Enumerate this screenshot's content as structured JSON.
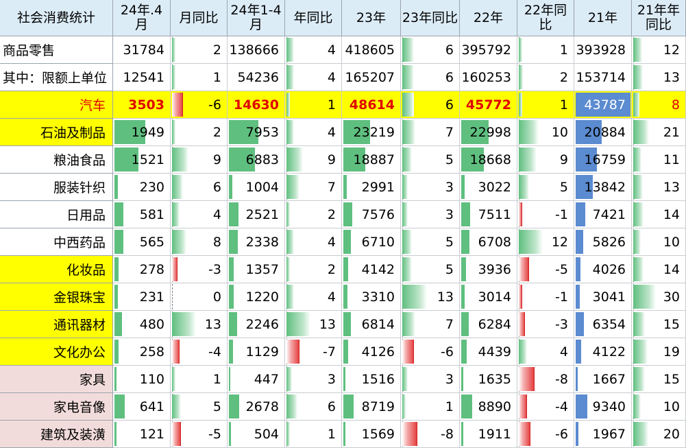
{
  "header": [
    "社会消费统计",
    "24年.4\n月",
    "月同比",
    "24年1-4\n月",
    "年同比",
    "23年",
    "23年同比",
    "22年",
    "22年同\n比",
    "21年",
    "21年年\n同比"
  ],
  "rows": [
    {
      "name": "商品零售",
      "values": [
        "31784",
        "2",
        "138666",
        "4",
        "418605",
        "6",
        "395792",
        "1",
        "393928",
        "12"
      ],
      "bg": "#ffffff",
      "align": "l"
    },
    {
      "name": "其中：限额上单位",
      "values": [
        "12541",
        "1",
        "54236",
        "4",
        "165207",
        "6",
        "160253",
        "2",
        "153714",
        "13"
      ],
      "bg": "#ffffff",
      "align": "l"
    },
    {
      "name": "汽车",
      "values": [
        "3503",
        "-6",
        "14630",
        "1",
        "48614",
        "6",
        "45772",
        "1",
        "43787",
        "8"
      ],
      "bg": "#ffff00",
      "align": "r",
      "highlight": true
    },
    {
      "name": "石油及制品",
      "values": [
        "1949",
        "2",
        "7953",
        "4",
        "23219",
        "7",
        "22998",
        "10",
        "20884",
        "21"
      ],
      "bg": "#ffff00",
      "align": "r"
    },
    {
      "name": "粮油食品",
      "values": [
        "1521",
        "9",
        "6883",
        "9",
        "18887",
        "5",
        "18668",
        "9",
        "16759",
        "11"
      ],
      "bg": "#ffffff",
      "align": "r"
    },
    {
      "name": "服装针织",
      "values": [
        "230",
        "6",
        "1004",
        "7",
        "2991",
        "3",
        "3022",
        "5",
        "13842",
        "13"
      ],
      "bg": "#ffffff",
      "align": "r"
    },
    {
      "name": "日用品",
      "values": [
        "581",
        "4",
        "2521",
        "2",
        "7576",
        "3",
        "7511",
        "-1",
        "7421",
        "14"
      ],
      "bg": "#ffffff",
      "align": "r"
    },
    {
      "name": "中西药品",
      "values": [
        "565",
        "8",
        "2338",
        "4",
        "6710",
        "5",
        "6708",
        "12",
        "5826",
        "10"
      ],
      "bg": "#ffffff",
      "align": "r"
    },
    {
      "name": "化妆品",
      "values": [
        "278",
        "-3",
        "1357",
        "2",
        "4142",
        "5",
        "3936",
        "-5",
        "4026",
        "14"
      ],
      "bg": "#ffff00",
      "align": "r"
    },
    {
      "name": "金银珠宝",
      "values": [
        "231",
        "0",
        "1220",
        "4",
        "3310",
        "13",
        "3014",
        "-1",
        "3041",
        "30"
      ],
      "bg": "#ffff00",
      "align": "r"
    },
    {
      "name": "通讯器材",
      "values": [
        "480",
        "13",
        "2246",
        "13",
        "6814",
        "7",
        "6284",
        "-3",
        "6354",
        "15"
      ],
      "bg": "#ffff00",
      "align": "r"
    },
    {
      "name": "文化办公",
      "values": [
        "258",
        "-4",
        "1129",
        "-7",
        "4126",
        "-6",
        "4439",
        "4",
        "4122",
        "19"
      ],
      "bg": "#ffff00",
      "align": "r"
    },
    {
      "name": "家具",
      "values": [
        "110",
        "1",
        "447",
        "3",
        "1516",
        "3",
        "1635",
        "-8",
        "1667",
        "15"
      ],
      "bg": "#f2dcdb",
      "align": "r"
    },
    {
      "name": "家电音像",
      "values": [
        "641",
        "5",
        "2678",
        "6",
        "8719",
        "1",
        "8890",
        "-4",
        "9340",
        "10"
      ],
      "bg": "#f2dcdb",
      "align": "r"
    },
    {
      "name": "建筑及装潢",
      "values": [
        "121",
        "-5",
        "504",
        "1",
        "1569",
        "-8",
        "1911",
        "-6",
        "1967",
        "20"
      ],
      "bg": "#f2dcdb",
      "align": "r"
    }
  ],
  "colors": {
    "header_bg": "#dcecf7",
    "yellow": "#ffff00",
    "pink": "#f2dcdb",
    "green_bar": "#5fbf7f",
    "blue_bar": "#5b8bd0",
    "red_bar": "#e43a3a",
    "highlight_text": "#e00000"
  }
}
